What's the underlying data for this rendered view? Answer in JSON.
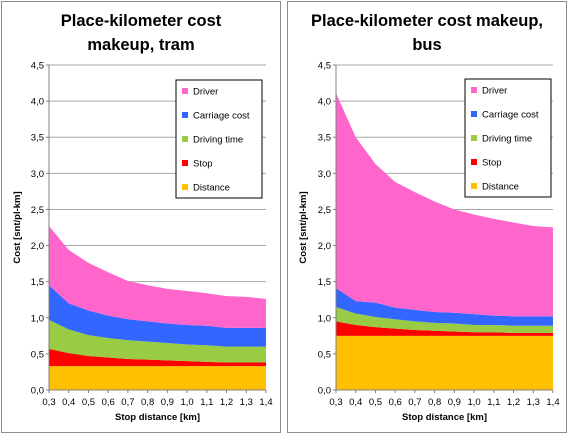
{
  "colors": {
    "Driver": "#ff66cc",
    "Carriage cost": "#3366ff",
    "Driving time": "#99cc44",
    "Stop": "#ff0000",
    "Distance": "#ffc000"
  },
  "chart_data": [
    {
      "type": "area",
      "stacked": true,
      "title_lines": [
        "Place-kilometer cost",
        "makeup, tram"
      ],
      "xlabel": "Stop distance [km]",
      "ylabel": "Cost [snt/pl-km]",
      "ylim": [
        0,
        4.5
      ],
      "xlim": [
        0.3,
        1.4
      ],
      "x": [
        0.3,
        0.4,
        0.5,
        0.6,
        0.7,
        0.8,
        0.9,
        1.0,
        1.1,
        1.2,
        1.3,
        1.4
      ],
      "x_ticks": [
        "0,3",
        "0,4",
        "0,5",
        "0,6",
        "0,7",
        "0,8",
        "0,9",
        "1,0",
        "1,1",
        "1,2",
        "1,3",
        "1,4"
      ],
      "y_ticks": [
        "0,0",
        "0,5",
        "1,0",
        "1,5",
        "2,0",
        "2,5",
        "3,0",
        "3,5",
        "4,0",
        "4,5"
      ],
      "grid": "horizontal",
      "legend": "top-right",
      "legend_order": [
        "Driver",
        "Carriage cost",
        "Driving time",
        "Stop",
        "Distance"
      ],
      "stack_order": [
        "Distance",
        "Stop",
        "Driving time",
        "Carriage cost",
        "Driver"
      ],
      "series": [
        {
          "name": "Distance",
          "values": [
            0.33,
            0.33,
            0.33,
            0.33,
            0.33,
            0.33,
            0.33,
            0.33,
            0.33,
            0.33,
            0.33,
            0.33
          ]
        },
        {
          "name": "Stop",
          "values": [
            0.24,
            0.18,
            0.14,
            0.12,
            0.1,
            0.09,
            0.08,
            0.07,
            0.06,
            0.05,
            0.05,
            0.05
          ]
        },
        {
          "name": "Driving time",
          "values": [
            0.4,
            0.33,
            0.29,
            0.27,
            0.26,
            0.25,
            0.24,
            0.23,
            0.23,
            0.22,
            0.22,
            0.22
          ]
        },
        {
          "name": "Carriage cost",
          "values": [
            0.48,
            0.36,
            0.34,
            0.31,
            0.29,
            0.28,
            0.27,
            0.27,
            0.27,
            0.26,
            0.26,
            0.26
          ]
        },
        {
          "name": "Driver",
          "values": [
            0.82,
            0.74,
            0.66,
            0.6,
            0.53,
            0.5,
            0.48,
            0.47,
            0.45,
            0.44,
            0.43,
            0.4
          ]
        }
      ]
    },
    {
      "type": "area",
      "stacked": true,
      "title_lines": [
        "Place-kilometer cost makeup,",
        "bus"
      ],
      "xlabel": "Stop distance [km]",
      "ylabel": "Cost [snt/pl-km]",
      "ylim": [
        0,
        4.5
      ],
      "xlim": [
        0.3,
        1.4
      ],
      "x": [
        0.3,
        0.4,
        0.5,
        0.6,
        0.7,
        0.8,
        0.9,
        1.0,
        1.1,
        1.2,
        1.3,
        1.4
      ],
      "x_ticks": [
        "0,3",
        "0,4",
        "0,5",
        "0,6",
        "0,7",
        "0,8",
        "0,9",
        "1,0",
        "1,1",
        "1,2",
        "1,3",
        "1,4"
      ],
      "y_ticks": [
        "0,0",
        "0,5",
        "1,0",
        "1,5",
        "2,0",
        "2,5",
        "3,0",
        "3,5",
        "4,0",
        "4,5"
      ],
      "grid": "horizontal",
      "legend": "top-right",
      "legend_order": [
        "Driver",
        "Carriage cost",
        "Driving time",
        "Stop",
        "Distance"
      ],
      "stack_order": [
        "Distance",
        "Stop",
        "Driving time",
        "Carriage cost",
        "Driver"
      ],
      "series": [
        {
          "name": "Distance",
          "values": [
            0.75,
            0.75,
            0.75,
            0.75,
            0.75,
            0.75,
            0.75,
            0.75,
            0.75,
            0.75,
            0.75,
            0.75
          ]
        },
        {
          "name": "Stop",
          "values": [
            0.2,
            0.15,
            0.12,
            0.1,
            0.08,
            0.07,
            0.06,
            0.05,
            0.05,
            0.04,
            0.04,
            0.04
          ]
        },
        {
          "name": "Driving time",
          "values": [
            0.2,
            0.16,
            0.14,
            0.13,
            0.12,
            0.11,
            0.11,
            0.1,
            0.1,
            0.1,
            0.1,
            0.1
          ]
        },
        {
          "name": "Carriage cost",
          "values": [
            0.26,
            0.17,
            0.2,
            0.16,
            0.16,
            0.15,
            0.15,
            0.15,
            0.13,
            0.13,
            0.13,
            0.13
          ]
        },
        {
          "name": "Driver",
          "values": [
            2.7,
            2.27,
            1.92,
            1.74,
            1.63,
            1.53,
            1.43,
            1.38,
            1.34,
            1.3,
            1.25,
            1.23
          ]
        }
      ]
    }
  ]
}
